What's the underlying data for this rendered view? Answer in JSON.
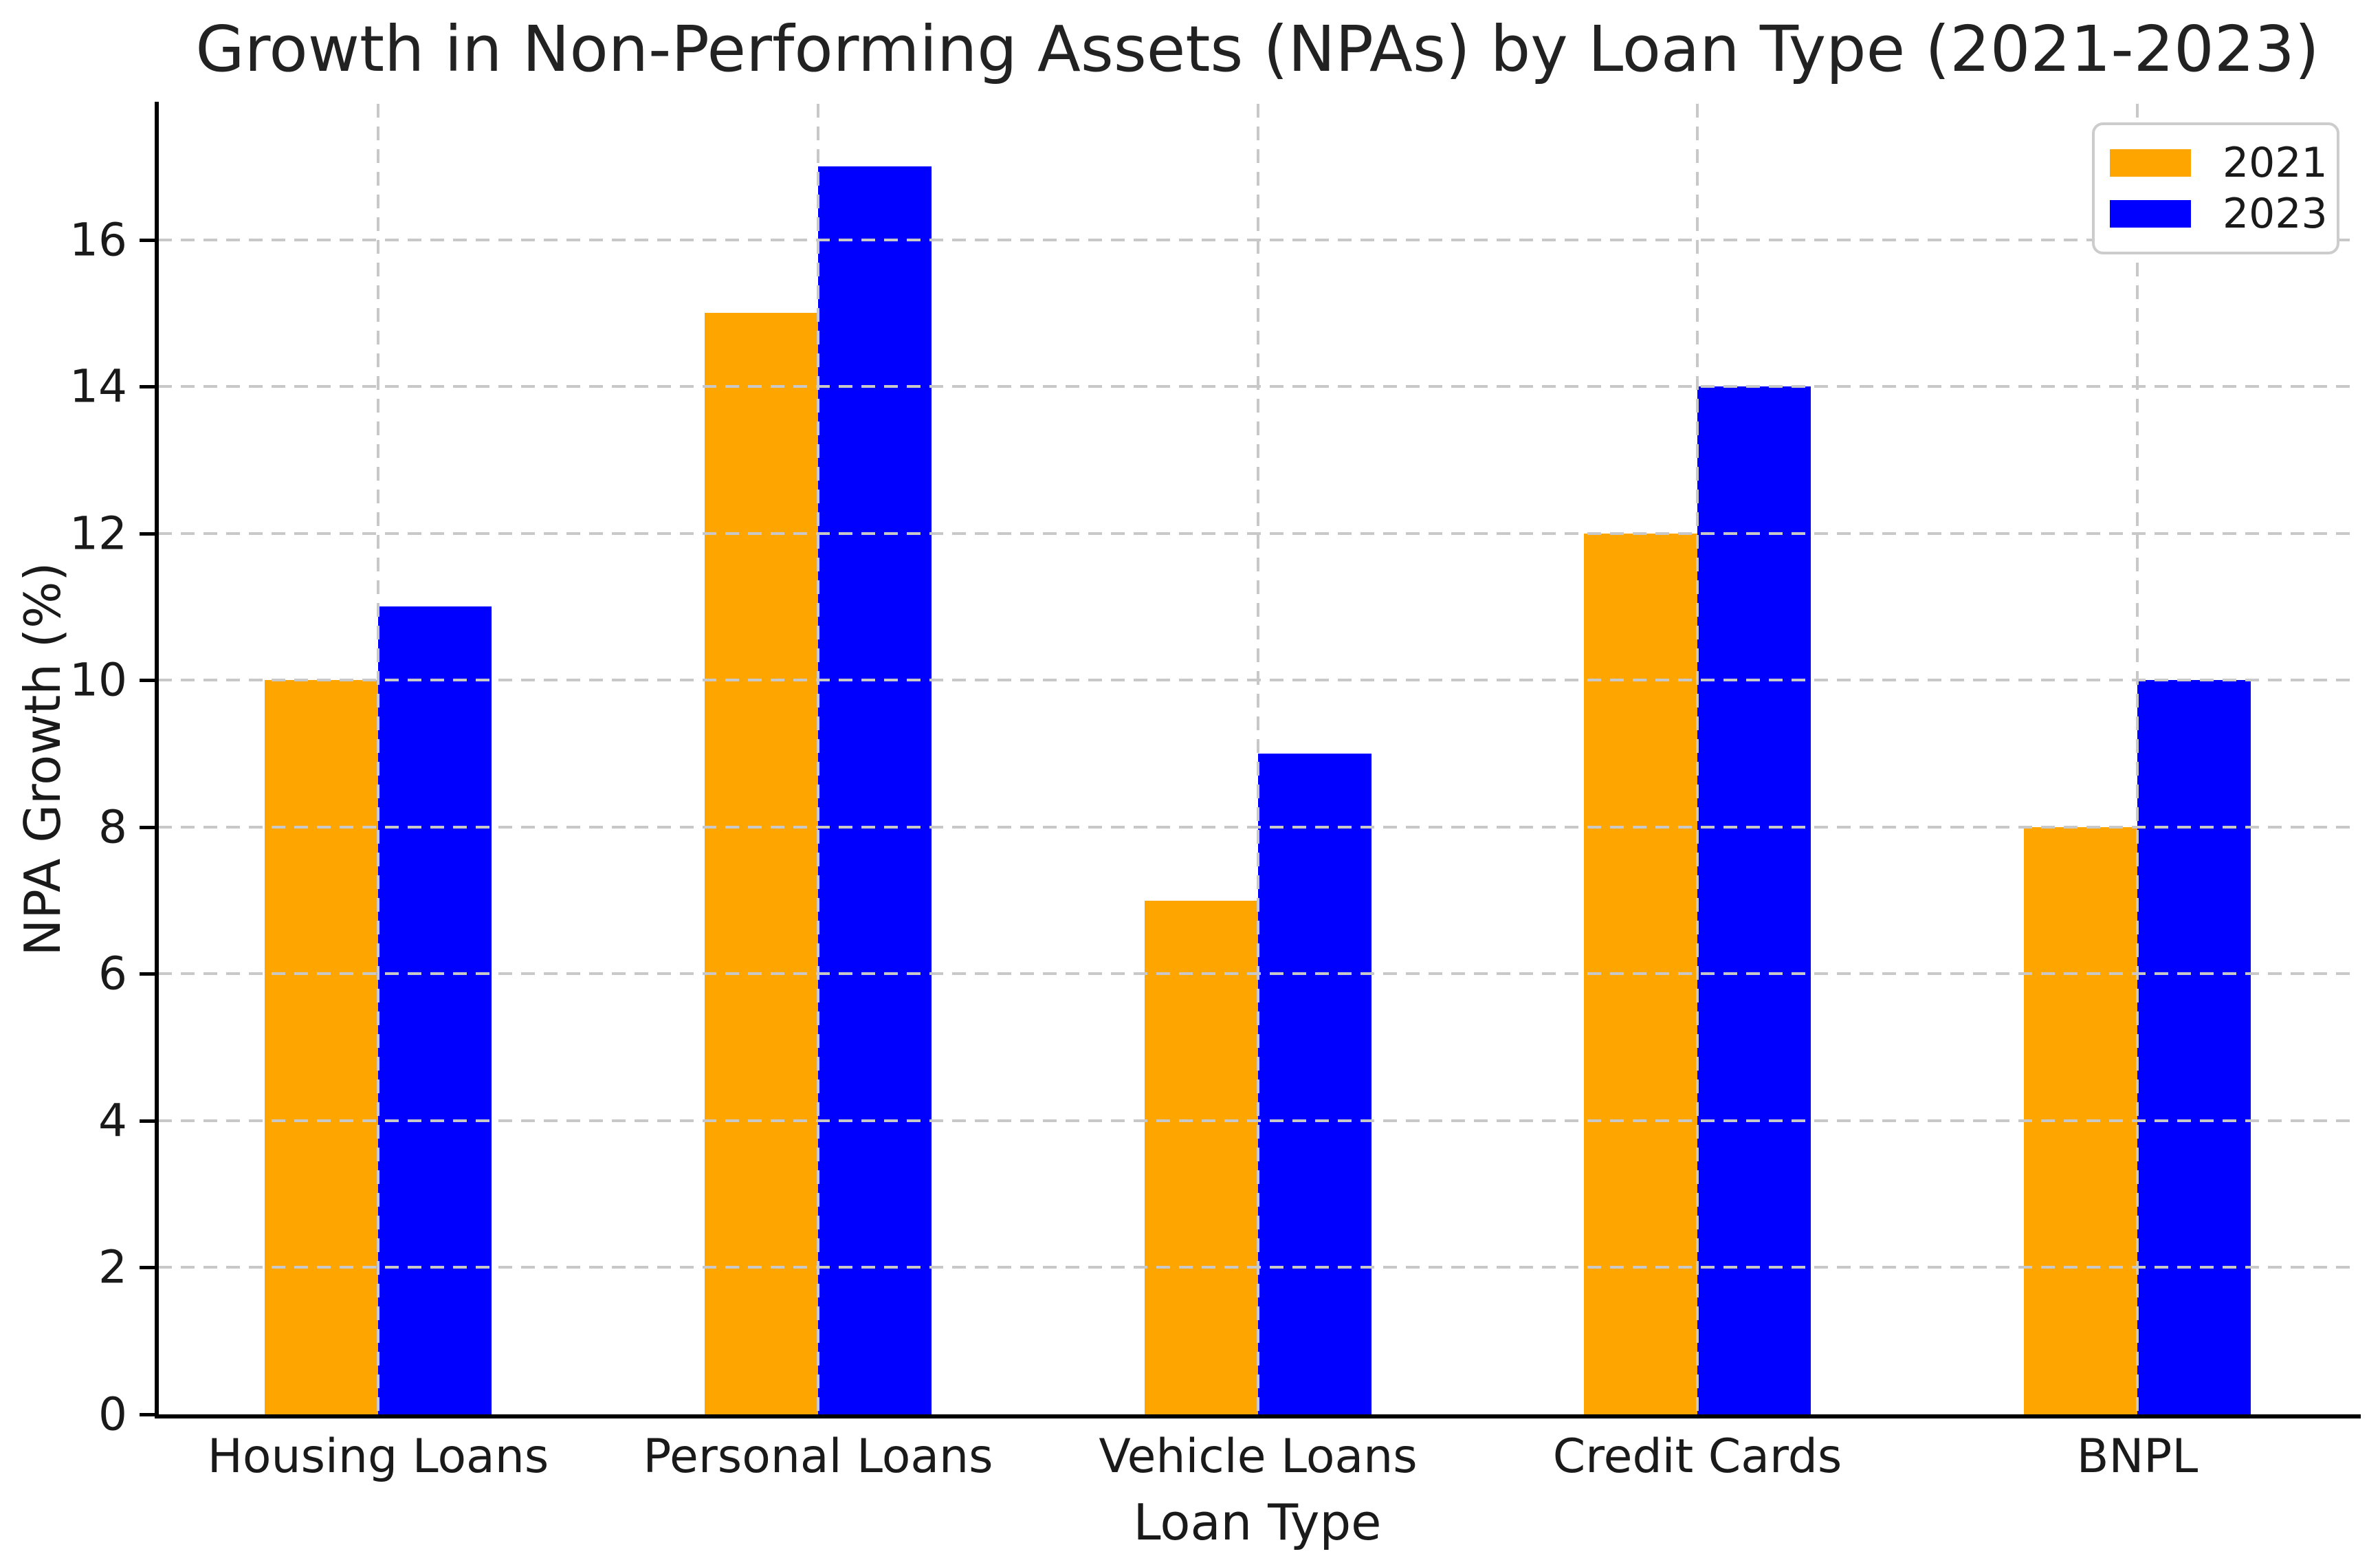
{
  "chart_data": {
    "type": "bar",
    "title": "Growth in Non-Performing Assets (NPAs) by Loan Type (2021-2023)",
    "xlabel": "Loan Type",
    "ylabel": "NPA Growth (%)",
    "categories": [
      "Housing Loans",
      "Personal Loans",
      "Vehicle Loans",
      "Credit Cards",
      "BNPL"
    ],
    "series": [
      {
        "name": "2021",
        "color": "#FFA500",
        "values": [
          10,
          15,
          7,
          12,
          8
        ]
      },
      {
        "name": "2023",
        "color": "#0000FF",
        "values": [
          11,
          17,
          9,
          14,
          10
        ]
      }
    ],
    "ylim": [
      0,
      17.85
    ],
    "yticks": [
      0,
      2,
      4,
      6,
      8,
      10,
      12,
      14,
      16
    ],
    "grid": {
      "visible": true,
      "style": "dashed",
      "color": "#c8c8c8",
      "axes": "both",
      "layer": "above-bars"
    },
    "legend": {
      "position": "upper-right",
      "entries": [
        "2021",
        "2023"
      ]
    },
    "colors": {
      "spine": "#000000",
      "text": "#1a1a1a",
      "grid": "#c8c8c8",
      "background": "#ffffff"
    }
  }
}
